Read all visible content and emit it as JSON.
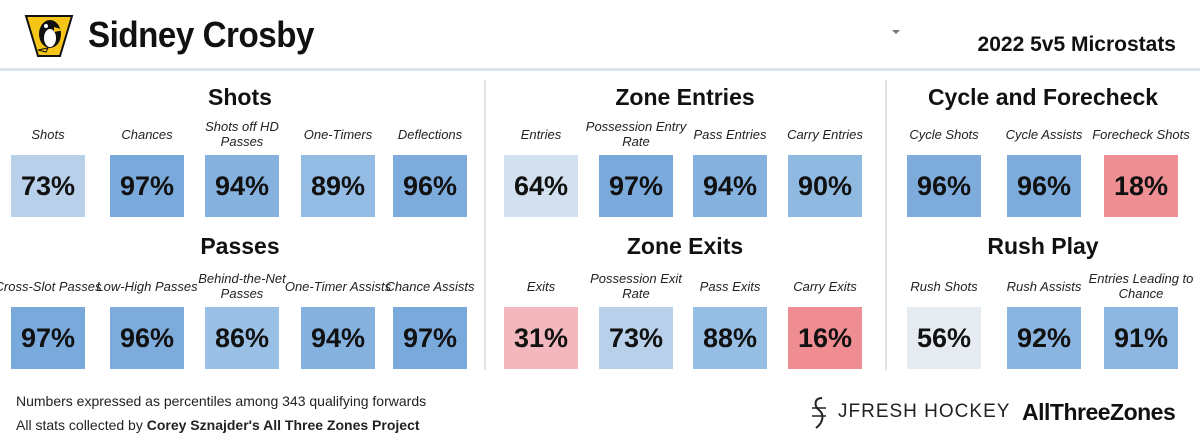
{
  "header": {
    "player_name": "Sidney Crosby",
    "season_title": "2022 5v5 Microstats"
  },
  "colors": {
    "very_high": "#7aaadb",
    "high": "#8fb9e2",
    "mid_high": "#b8d0ea",
    "mid": "#d9e4f1",
    "neutral": "#e6ebf1",
    "low": "#f2b6bb",
    "very_low": "#ef8a8f"
  },
  "sections": {
    "shots": {
      "title": "Shots",
      "tiles": [
        {
          "label": "Shots",
          "value": "73%",
          "color": "#b8d0ea"
        },
        {
          "label": "Chances",
          "value": "97%",
          "color": "#7aaadb"
        },
        {
          "label": "Shots off HD Passes",
          "value": "94%",
          "color": "#84b1de"
        },
        {
          "label": "One-Timers",
          "value": "89%",
          "color": "#93bbe3"
        },
        {
          "label": "Deflections",
          "value": "96%",
          "color": "#7dacdc"
        }
      ]
    },
    "passes": {
      "title": "Passes",
      "tiles": [
        {
          "label": "Cross-Slot Passes",
          "value": "97%",
          "color": "#7aaadb"
        },
        {
          "label": "Low-High Passes",
          "value": "96%",
          "color": "#7dacdc"
        },
        {
          "label": "Behind-the-Net Passes",
          "value": "86%",
          "color": "#9ac0e5"
        },
        {
          "label": "One-Timer Assists",
          "value": "94%",
          "color": "#84b1de"
        },
        {
          "label": "Chance Assists",
          "value": "97%",
          "color": "#7aaadb"
        }
      ]
    },
    "zone_entries": {
      "title": "Zone Entries",
      "tiles": [
        {
          "label": "Entries",
          "value": "64%",
          "color": "#d2e0ef"
        },
        {
          "label": "Possession Entry Rate",
          "value": "97%",
          "color": "#7aaadb"
        },
        {
          "label": "Pass Entries",
          "value": "94%",
          "color": "#84b1de"
        },
        {
          "label": "Carry Entries",
          "value": "90%",
          "color": "#90b9e2"
        }
      ]
    },
    "zone_exits": {
      "title": "Zone Exits",
      "tiles": [
        {
          "label": "Exits",
          "value": "31%",
          "color": "#f2b8bd"
        },
        {
          "label": "Possession Exit Rate",
          "value": "73%",
          "color": "#b8d0ea"
        },
        {
          "label": "Pass Exits",
          "value": "88%",
          "color": "#96bde4"
        },
        {
          "label": "Carry Exits",
          "value": "16%",
          "color": "#ef8d92"
        }
      ]
    },
    "cycle": {
      "title": "Cycle and Forecheck",
      "tiles": [
        {
          "label": "Cycle Shots",
          "value": "96%",
          "color": "#7dacdc"
        },
        {
          "label": "Cycle Assists",
          "value": "96%",
          "color": "#7dacdc"
        },
        {
          "label": "Forecheck Shots",
          "value": "18%",
          "color": "#ef8f94"
        }
      ]
    },
    "rush": {
      "title": "Rush Play",
      "tiles": [
        {
          "label": "Rush Shots",
          "value": "56%",
          "color": "#e6ebf1"
        },
        {
          "label": "Rush Assists",
          "value": "92%",
          "color": "#8ab5e0"
        },
        {
          "label": "Entries Leading to Chance",
          "value": "91%",
          "color": "#8db7e1"
        }
      ]
    }
  },
  "footer": {
    "note_percentiles": "Numbers expressed as percentiles among 343 qualifying forwards",
    "note_source_prefix": "All stats collected by ",
    "note_source_bold": "Corey Sznajder's All Three Zones Project",
    "brand_jfresh": "JFRESH HOCKEY",
    "brand_atz": "AllThreeZones"
  }
}
